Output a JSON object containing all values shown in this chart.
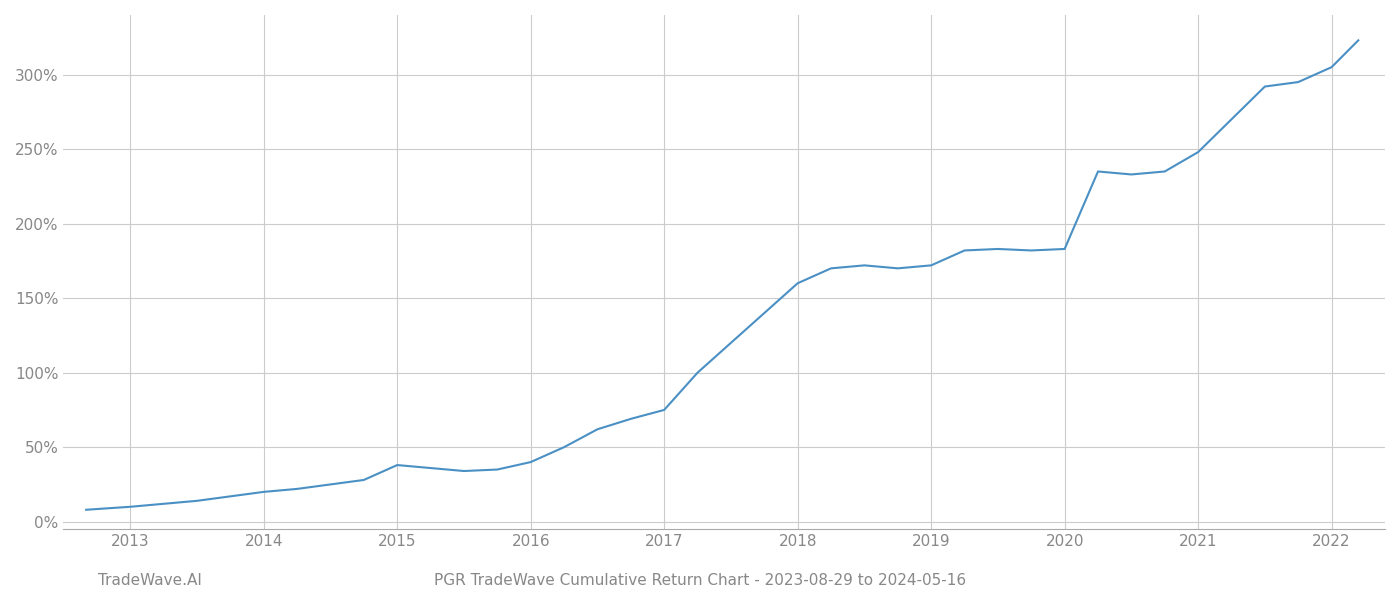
{
  "title": "PGR TradeWave Cumulative Return Chart - 2023-08-29 to 2024-05-16",
  "watermark": "TradeWave.AI",
  "line_color": "#4a90c4",
  "background_color": "#ffffff",
  "grid_color": "#cccccc",
  "x_years": [
    2013,
    2014,
    2015,
    2016,
    2017,
    2018,
    2019,
    2020,
    2021,
    2022
  ],
  "x_values": [
    2012.67,
    2013.0,
    2013.25,
    2013.5,
    2013.75,
    2014.0,
    2014.25,
    2014.5,
    2014.75,
    2015.0,
    2015.25,
    2015.5,
    2015.75,
    2016.0,
    2016.25,
    2016.5,
    2016.75,
    2017.0,
    2017.25,
    2017.5,
    2017.75,
    2018.0,
    2018.25,
    2018.5,
    2018.75,
    2019.0,
    2019.25,
    2019.5,
    2019.75,
    2020.0,
    2020.25,
    2020.5,
    2020.75,
    2021.0,
    2021.25,
    2021.5,
    2021.75,
    2022.0,
    2022.2
  ],
  "y_values": [
    8,
    10,
    12,
    14,
    17,
    20,
    22,
    25,
    28,
    38,
    36,
    34,
    35,
    40,
    50,
    62,
    69,
    75,
    100,
    120,
    140,
    160,
    170,
    172,
    170,
    172,
    182,
    183,
    182,
    183,
    235,
    233,
    235,
    248,
    270,
    292,
    295,
    305,
    323
  ],
  "yticks": [
    0,
    50,
    100,
    150,
    200,
    250,
    300
  ],
  "ylim": [
    -5,
    340
  ],
  "xlim": [
    2012.5,
    2022.4
  ],
  "title_fontsize": 11,
  "watermark_fontsize": 11,
  "tick_label_color": "#888888",
  "tick_fontsize": 11,
  "line_width": 1.5
}
